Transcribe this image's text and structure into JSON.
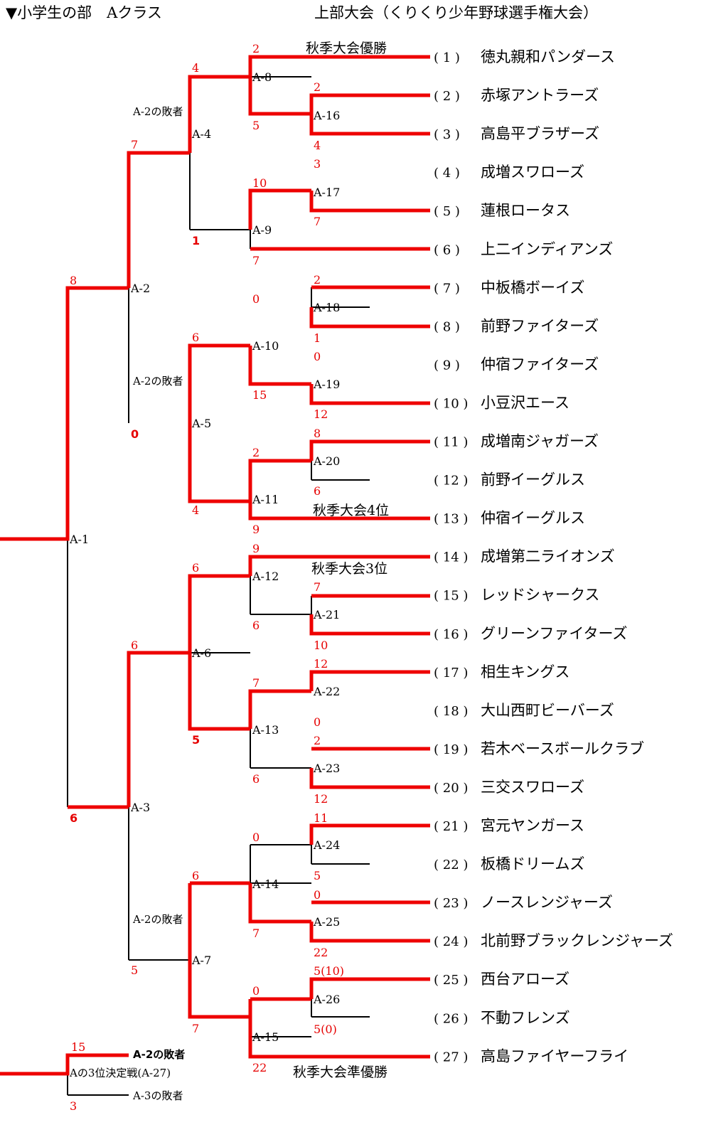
{
  "header": {
    "division": "▼小学生の部　Aクラス",
    "tournament": "上部大会（くりくり少年野球選手権大会）"
  },
  "teams": [
    {
      "no": "( 1 )",
      "name": "徳丸親和パンダース"
    },
    {
      "no": "( 2 )",
      "name": "赤塚アントラーズ"
    },
    {
      "no": "( 3 )",
      "name": "高島平ブラザーズ"
    },
    {
      "no": "( 4 )",
      "name": "成増スワローズ"
    },
    {
      "no": "( 5 )",
      "name": "蓮根ロータス"
    },
    {
      "no": "( 6 )",
      "name": "上二インディアンズ"
    },
    {
      "no": "( 7 )",
      "name": "中板橋ボーイズ"
    },
    {
      "no": "( 8 )",
      "name": "前野ファイターズ"
    },
    {
      "no": "( 9 )",
      "name": "仲宿ファイターズ"
    },
    {
      "no": "( 10 )",
      "name": "小豆沢エース"
    },
    {
      "no": "( 11 )",
      "name": "成増南ジャガーズ"
    },
    {
      "no": "( 12 )",
      "name": "前野イーグルス"
    },
    {
      "no": "( 13 )",
      "name": "仲宿イーグルス"
    },
    {
      "no": "( 14 )",
      "name": "成増第二ライオンズ"
    },
    {
      "no": "( 15 )",
      "name": "レッドシャークス"
    },
    {
      "no": "( 16 )",
      "name": "グリーンファイターズ"
    },
    {
      "no": "( 17 )",
      "name": "相生キングス"
    },
    {
      "no": "( 18 )",
      "name": "大山西町ビーバーズ"
    },
    {
      "no": "( 19 )",
      "name": "若木ベースボールクラブ"
    },
    {
      "no": "( 20 )",
      "name": "三交スワローズ"
    },
    {
      "no": "( 21 )",
      "name": "宮元ヤンガース"
    },
    {
      "no": "( 22 )",
      "name": "板橋ドリームズ"
    },
    {
      "no": "( 23 )",
      "name": "ノースレンジャーズ"
    },
    {
      "no": "( 24 )",
      "name": "北前野ブラックレンジャーズ"
    },
    {
      "no": "( 25 )",
      "name": "西台アローズ"
    },
    {
      "no": "( 26 )",
      "name": "不動フレンズ"
    },
    {
      "no": "( 27 )",
      "name": "高島ファイヤーフライ"
    }
  ],
  "matches": {
    "A1": "A-1",
    "A2": "A-2",
    "A3": "A-3",
    "A4": "A-4",
    "A5": "A-5",
    "A6": "A-6",
    "A7": "A-7",
    "A8": "A-8",
    "A9": "A-9",
    "A10": "A-10",
    "A11": "A-11",
    "A12": "A-12",
    "A13": "A-13",
    "A14": "A-14",
    "A15": "A-15",
    "A16": "A-16",
    "A17": "A-17",
    "A18": "A-18",
    "A19": "A-19",
    "A20": "A-20",
    "A21": "A-21",
    "A22": "A-22",
    "A23": "A-23",
    "A24": "A-24",
    "A25": "A-25",
    "A26": "A-26",
    "third_place": "Aの3位決定戦(A-27)"
  },
  "notes": {
    "a2_loser": "A-2の敗者",
    "a3_loser": "A-3の敗者"
  },
  "results": {
    "champion": "秋季大会優勝",
    "runner_up": "秋季大会準優勝",
    "third": "秋季大会3位",
    "fourth": "秋季大会4位"
  },
  "scores": {
    "A16_top": "2",
    "A16_bot": "4",
    "A17_top": "3",
    "A17_bot": "7",
    "A18_top": "2",
    "A18_bot": "1",
    "A19_top": "0",
    "A19_bot": "12",
    "A20_top": "8",
    "A20_bot": "6",
    "A21_top": "7",
    "A21_bot": "10",
    "A22_top": "12",
    "A22_bot": "0",
    "A23_top": "2",
    "A23_bot": "12",
    "A24_top": "11",
    "A24_bot": "5",
    "A25_top": "0",
    "A25_bot": "22",
    "A26_top": "5(10)",
    "A26_bot": "5(0)",
    "A8_top": "2",
    "A8_bot": "5",
    "A9_top": "10",
    "A9_bot": "7",
    "A10_top": "0",
    "A10_bot": "15",
    "A11_top": "2",
    "A11_bot": "9",
    "A12_top": "9",
    "A12_bot": "6",
    "A13_top": "7",
    "A13_bot": "6",
    "A14_top": "0",
    "A14_bot": "7",
    "A15_top": "0",
    "A15_bot": "22",
    "A4_top": "4",
    "A4_bot": "1",
    "A5_top": "6",
    "A5_bot": "4",
    "A6_top": "6",
    "A6_bot": "5",
    "A7_top": "6",
    "A7_bot": "7",
    "A2_top": "7",
    "A2_bot": "0",
    "A3_top": "6",
    "A3_bot": "5",
    "A1_top": "8",
    "A1_bot": "6",
    "A27_top": "15",
    "A27_bot": "3"
  }
}
